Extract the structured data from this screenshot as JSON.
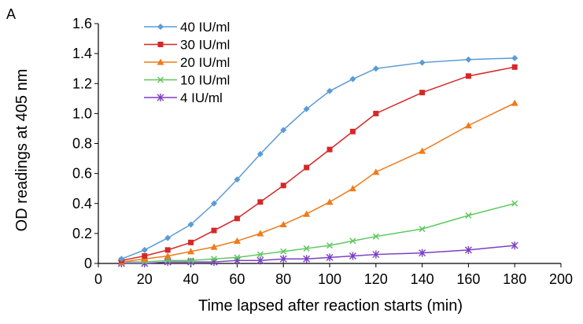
{
  "panel_label": "A",
  "chart_data": {
    "type": "line",
    "xlabel": "Time lapsed after reaction starts (min)",
    "ylabel": "OD readings at 405 nm",
    "xlim": [
      0,
      200
    ],
    "ylim": [
      0,
      1.6
    ],
    "x_ticks": [
      "0",
      "20",
      "40",
      "60",
      "80",
      "100",
      "120",
      "140",
      "160",
      "180",
      "200"
    ],
    "y_ticks": [
      "0",
      "0.2",
      "0.4",
      "0.6",
      "0.8",
      "1.0",
      "1.2",
      "1.4",
      "1.6"
    ],
    "grid": false,
    "legend_position": "top-left",
    "x": [
      10,
      20,
      30,
      40,
      50,
      60,
      70,
      80,
      90,
      100,
      110,
      120,
      140,
      160,
      180
    ],
    "series": [
      {
        "name": "40 IU/ml",
        "color": "#5b9bd5",
        "marker": "diamond",
        "values": [
          0.03,
          0.09,
          0.17,
          0.26,
          0.4,
          0.56,
          0.73,
          0.89,
          1.03,
          1.15,
          1.23,
          1.3,
          1.34,
          1.36,
          1.37
        ]
      },
      {
        "name": "30 IU/ml",
        "color": "#d62728",
        "marker": "square",
        "values": [
          0.02,
          0.05,
          0.09,
          0.14,
          0.22,
          0.3,
          0.41,
          0.52,
          0.64,
          0.76,
          0.88,
          1.0,
          1.14,
          1.25,
          1.31
        ]
      },
      {
        "name": "20 IU/ml",
        "color": "#f07a1a",
        "marker": "triangle",
        "values": [
          0.01,
          0.03,
          0.05,
          0.08,
          0.11,
          0.15,
          0.2,
          0.26,
          0.33,
          0.41,
          0.5,
          0.61,
          0.75,
          0.92,
          1.07
        ]
      },
      {
        "name": "10 IU/ml",
        "color": "#5ec85e",
        "marker": "x",
        "values": [
          0.01,
          0.01,
          0.02,
          0.02,
          0.03,
          0.04,
          0.06,
          0.08,
          0.1,
          0.12,
          0.15,
          0.18,
          0.23,
          0.32,
          0.4
        ]
      },
      {
        "name": "4 IU/ml",
        "color": "#7b3fc4",
        "marker": "asterisk",
        "values": [
          0.0,
          0.0,
          0.01,
          0.01,
          0.01,
          0.02,
          0.02,
          0.03,
          0.03,
          0.04,
          0.05,
          0.06,
          0.07,
          0.09,
          0.12
        ]
      }
    ]
  }
}
